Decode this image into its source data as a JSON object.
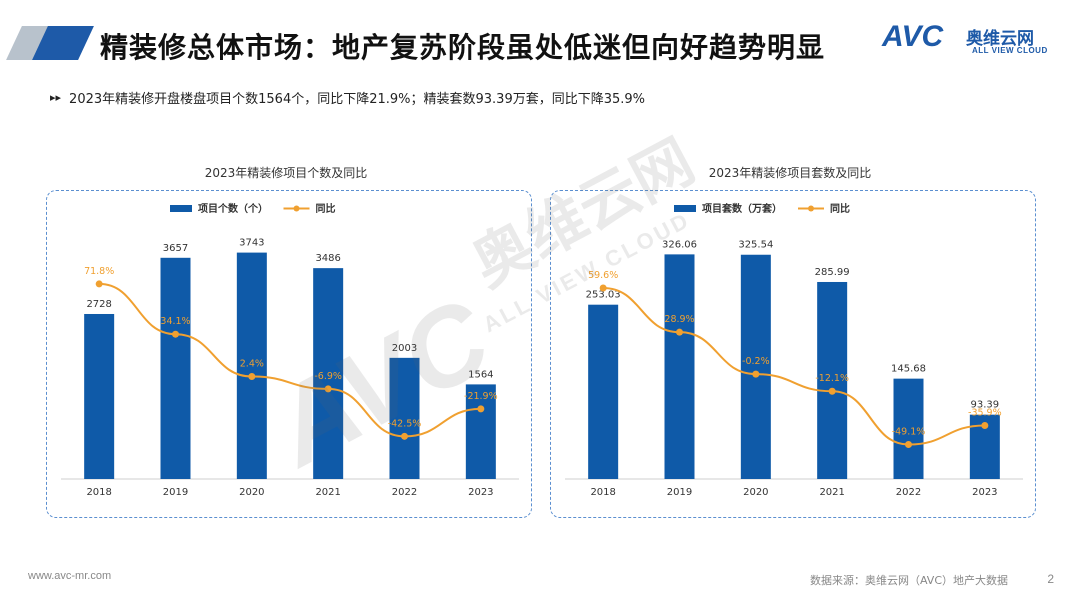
{
  "header": {
    "title": "精装修总体市场：地产复苏阶段虽处低迷但向好趋势明显"
  },
  "logo": {
    "brand": "AVC",
    "brand_cn": "奥维云网",
    "brand_en": "ALL VIEW CLOUD"
  },
  "summary": {
    "icon": "double-arrow-icon",
    "text": "2023年精装修开盘楼盘项目个数1564个，同比下降21.9%；精装套数93.39万套，同比下降35.9%"
  },
  "colors": {
    "bar": "#0f5aa8",
    "line": "#f0a030",
    "accent": "#1e5aa8"
  },
  "chart_data": [
    {
      "type": "bar",
      "title": "2023年精装修项目个数及同比",
      "categories": [
        "2018",
        "2019",
        "2020",
        "2021",
        "2022",
        "2023"
      ],
      "series": [
        {
          "name": "项目个数（个）",
          "type": "bar",
          "values": [
            2728,
            3657,
            3743,
            3486,
            2003,
            1564
          ],
          "labels": [
            "2728",
            "3657",
            "3743",
            "3486",
            "2003",
            "1564"
          ]
        },
        {
          "name": "同比",
          "type": "line",
          "values": [
            71.8,
            34.1,
            2.4,
            -6.9,
            -42.5,
            -21.9
          ],
          "labels": [
            "71.8%",
            "34.1%",
            "2.4%",
            "-6.9%",
            "-42.5%",
            "-21.9%"
          ]
        }
      ],
      "legend": "top",
      "grid": false
    },
    {
      "type": "bar",
      "title": "2023年精装修项目套数及同比",
      "categories": [
        "2018",
        "2019",
        "2020",
        "2021",
        "2022",
        "2023"
      ],
      "series": [
        {
          "name": "项目套数（万套）",
          "type": "bar",
          "values": [
            253.03,
            326.06,
            325.54,
            285.99,
            145.68,
            93.39
          ],
          "labels": [
            "253.03",
            "326.06",
            "325.54",
            "285.99",
            "145.68",
            "93.39"
          ]
        },
        {
          "name": "同比",
          "type": "line",
          "values": [
            59.6,
            28.9,
            -0.2,
            -12.1,
            -49.1,
            -35.9
          ],
          "labels": [
            "59.6%",
            "28.9%",
            "-0.2%",
            "-12.1%",
            "-49.1%",
            "-35.9%"
          ]
        }
      ],
      "legend": "top",
      "grid": false
    }
  ],
  "footer": {
    "url": "www.avc-mr.com",
    "source": "数据来源：奥维云网（AVC）地产大数据",
    "page": "2"
  }
}
